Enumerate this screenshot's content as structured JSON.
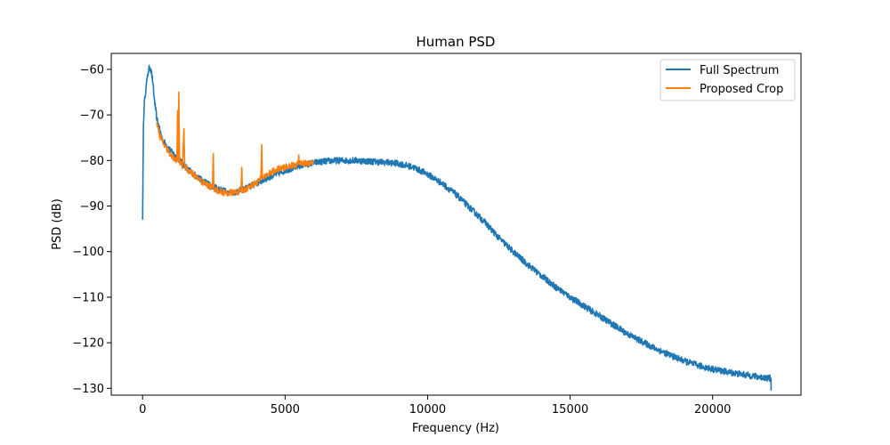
{
  "chart_data": {
    "type": "line",
    "title": "Human PSD",
    "xlabel": "Frequency (Hz)",
    "ylabel": "PSD (dB)",
    "xlim": [
      -1100,
      23100
    ],
    "ylim": [
      -131.5,
      -56.5
    ],
    "xticks": [
      0,
      5000,
      10000,
      15000,
      20000
    ],
    "yticks": [
      -60,
      -70,
      -80,
      -90,
      -100,
      -110,
      -120,
      -130
    ],
    "grid": false,
    "legend_position": "top-right",
    "series": [
      {
        "name": "Full Spectrum",
        "color": "#1f77b4",
        "x": [
          0,
          15,
          30,
          50,
          80,
          120,
          160,
          200,
          240,
          280,
          320,
          360,
          400,
          500,
          700,
          1000,
          1300,
          1600,
          2000,
          2400,
          2800,
          3000,
          3200,
          3600,
          4000,
          4500,
          5000,
          5500,
          6000,
          6500,
          7000,
          7500,
          8000,
          8500,
          9000,
          9500,
          10000,
          10500,
          11000,
          11500,
          12000,
          12500,
          13000,
          13500,
          14000,
          14500,
          15000,
          15500,
          16000,
          16500,
          17000,
          17500,
          18000,
          18500,
          19000,
          19500,
          20000,
          20500,
          21000,
          21500,
          22000,
          22050,
          22050
        ],
        "y": [
          -93,
          -82,
          -72,
          -69,
          -66,
          -64,
          -62,
          -60.5,
          -59.6,
          -59.8,
          -61,
          -63,
          -66,
          -71,
          -75.5,
          -78,
          -80,
          -82,
          -84,
          -85.5,
          -86.5,
          -87,
          -87,
          -86.2,
          -85,
          -83.5,
          -82.2,
          -81.2,
          -80.5,
          -80.1,
          -80,
          -80,
          -80.2,
          -80.4,
          -80.7,
          -81.5,
          -83,
          -85,
          -87.5,
          -90.5,
          -93.5,
          -97,
          -100,
          -102.8,
          -105.3,
          -107.8,
          -110,
          -112,
          -114,
          -116,
          -118,
          -119.7,
          -121.3,
          -122.7,
          -124,
          -125,
          -125.8,
          -126.4,
          -126.9,
          -127.4,
          -127.8,
          -128,
          -130.5
        ]
      },
      {
        "name": "Proposed Crop",
        "color": "#ff7f0e",
        "x": [
          500,
          550,
          600,
          700,
          800,
          900,
          1000,
          1100,
          1200,
          1230,
          1250,
          1270,
          1300,
          1350,
          1400,
          1450,
          1480,
          1500,
          1600,
          1800,
          2000,
          2200,
          2450,
          2480,
          2500,
          2600,
          2800,
          3000,
          3100,
          3200,
          3300,
          3450,
          3480,
          3500,
          3700,
          4000,
          4150,
          4180,
          4200,
          4400,
          4700,
          5000,
          5300,
          5450,
          5480,
          5500,
          5700,
          6000
        ],
        "y": [
          -71.5,
          -73,
          -74.5,
          -76,
          -77,
          -78,
          -78.8,
          -79.5,
          -80,
          -69,
          -80.3,
          -65,
          -80.6,
          -81,
          -81.2,
          -73,
          -81.5,
          -81.6,
          -82.2,
          -83.2,
          -84.3,
          -85.2,
          -86,
          -78.5,
          -86.1,
          -86.5,
          -87,
          -87.2,
          -87,
          -87.1,
          -86.9,
          -86.8,
          -81.5,
          -86.7,
          -86,
          -84.8,
          -84,
          -76.5,
          -83.8,
          -83,
          -82,
          -81.5,
          -81,
          -80.8,
          -78.8,
          -80.8,
          -80.6,
          -80.4
        ]
      }
    ]
  }
}
